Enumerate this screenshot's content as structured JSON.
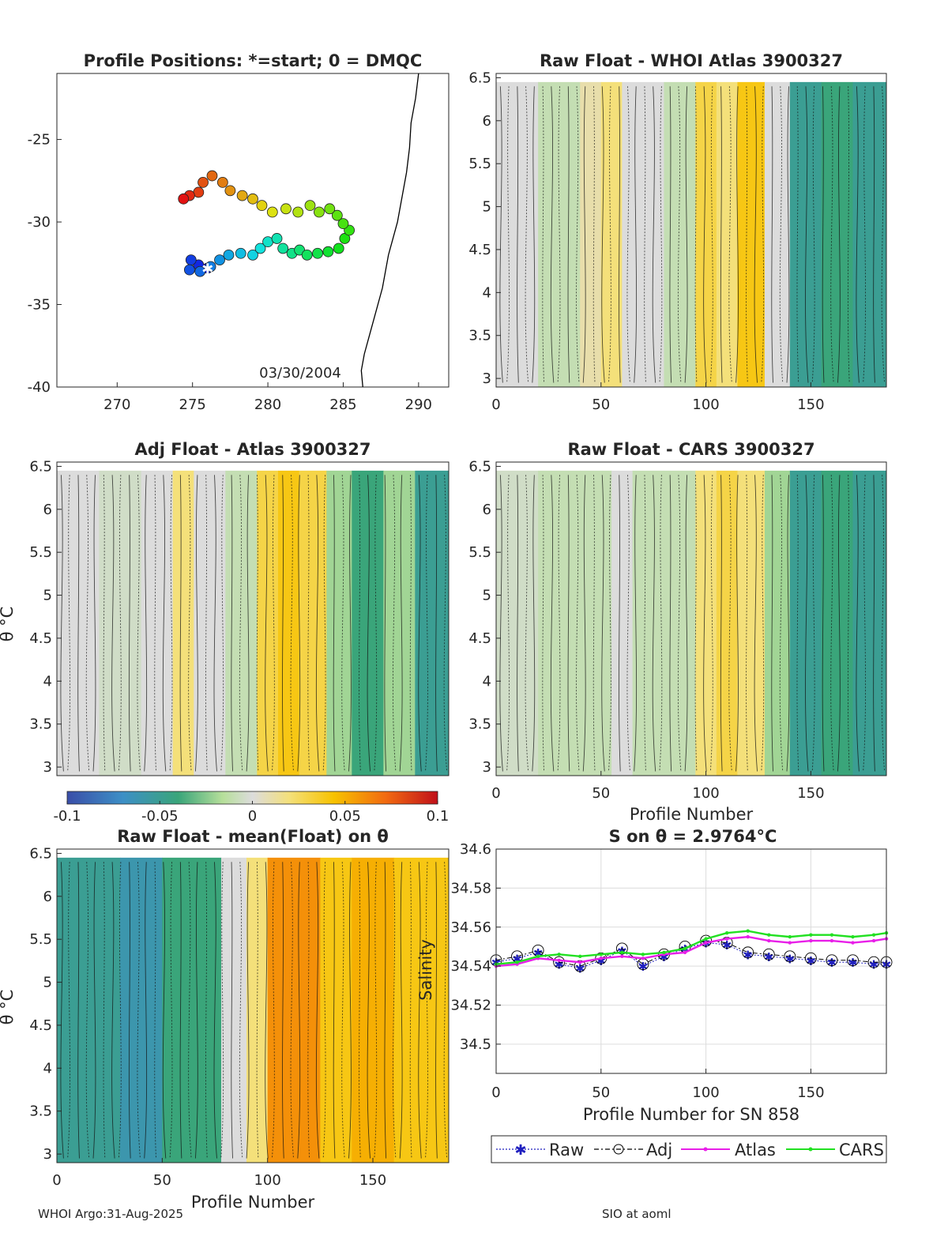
{
  "chart_data": [
    {
      "id": "map",
      "type": "scatter",
      "title": "Profile Positions: *=start; 0 = DMQC",
      "annotation": "03/30/2004",
      "xlim": [
        266,
        292
      ],
      "ylim": [
        -40,
        -21
      ],
      "xticks": [
        270,
        275,
        280,
        285,
        290
      ],
      "yticks": [
        -25,
        -30,
        -35,
        -40
      ],
      "coast": [
        [
          290.0,
          -21
        ],
        [
          289.8,
          -22.5
        ],
        [
          289.5,
          -24
        ],
        [
          289.4,
          -25.5
        ],
        [
          289.2,
          -27
        ],
        [
          288.9,
          -28.5
        ],
        [
          288.6,
          -30
        ],
        [
          288.3,
          -31
        ],
        [
          288.0,
          -32
        ],
        [
          287.8,
          -33
        ],
        [
          287.6,
          -34
        ],
        [
          287.3,
          -35
        ],
        [
          287.0,
          -36
        ],
        [
          286.7,
          -37
        ],
        [
          286.4,
          -38
        ],
        [
          286.2,
          -39
        ],
        [
          286.3,
          -40
        ]
      ],
      "track": [
        [
          276.0,
          -32.8
        ],
        [
          275.4,
          -32.6
        ],
        [
          274.9,
          -32.3
        ],
        [
          274.8,
          -32.9
        ],
        [
          275.5,
          -33.0
        ],
        [
          276.2,
          -32.7
        ],
        [
          276.8,
          -32.3
        ],
        [
          277.4,
          -32.0
        ],
        [
          278.2,
          -31.9
        ],
        [
          279.0,
          -32.0
        ],
        [
          279.5,
          -31.6
        ],
        [
          280.0,
          -31.2
        ],
        [
          280.6,
          -31.0
        ],
        [
          281.0,
          -31.6
        ],
        [
          281.6,
          -31.9
        ],
        [
          282.1,
          -31.7
        ],
        [
          282.6,
          -32.0
        ],
        [
          283.3,
          -31.9
        ],
        [
          284.0,
          -31.8
        ],
        [
          284.7,
          -31.6
        ],
        [
          285.1,
          -31.0
        ],
        [
          285.4,
          -30.5
        ],
        [
          285.0,
          -30.1
        ],
        [
          284.6,
          -29.6
        ],
        [
          284.1,
          -29.2
        ],
        [
          283.4,
          -29.4
        ],
        [
          282.8,
          -29.0
        ],
        [
          282.0,
          -29.4
        ],
        [
          281.2,
          -29.2
        ],
        [
          280.3,
          -29.4
        ],
        [
          279.6,
          -29.0
        ],
        [
          279.0,
          -28.6
        ],
        [
          278.3,
          -28.4
        ],
        [
          277.5,
          -28.1
        ],
        [
          277.0,
          -27.6
        ],
        [
          276.3,
          -27.2
        ],
        [
          275.7,
          -27.6
        ],
        [
          275.4,
          -28.2
        ],
        [
          274.8,
          -28.4
        ],
        [
          274.4,
          -28.6
        ]
      ],
      "start": [
        276.0,
        -32.8
      ]
    },
    {
      "id": "raw-atlas",
      "type": "heatmap",
      "title": "Raw Float - WHOI Atlas  3900327",
      "xlabel": "",
      "ylabel": "",
      "xlim": [
        0,
        186
      ],
      "ylim": [
        2.9,
        6.55
      ],
      "xticks": [
        0,
        50,
        100,
        150
      ],
      "yticks": [
        3,
        3.5,
        4,
        4.5,
        5,
        5.5,
        6,
        6.5
      ],
      "anomaly_bands": [
        [
          0,
          20,
          0.0
        ],
        [
          20,
          40,
          -0.01
        ],
        [
          40,
          50,
          0.01
        ],
        [
          50,
          60,
          0.02
        ],
        [
          60,
          80,
          0.0
        ],
        [
          80,
          95,
          -0.01
        ],
        [
          95,
          105,
          0.03
        ],
        [
          105,
          115,
          0.02
        ],
        [
          115,
          128,
          0.04
        ],
        [
          128,
          140,
          0.0
        ],
        [
          140,
          155,
          -0.05
        ],
        [
          155,
          170,
          -0.04
        ],
        [
          170,
          186,
          -0.05
        ]
      ]
    },
    {
      "id": "adj-atlas",
      "type": "heatmap",
      "title": "Adj Float - Atlas  3900327",
      "xlabel": "",
      "ylabel": "θ °C",
      "xlim": [
        0,
        186
      ],
      "ylim": [
        2.9,
        6.55
      ],
      "xticks": [],
      "yticks": [
        3,
        3.5,
        4,
        4.5,
        5,
        5.5,
        6,
        6.5
      ],
      "anomaly_bands": [
        [
          0,
          20,
          0.0
        ],
        [
          20,
          40,
          -0.005
        ],
        [
          40,
          55,
          0.0
        ],
        [
          55,
          65,
          0.02
        ],
        [
          65,
          80,
          0.0
        ],
        [
          80,
          95,
          -0.01
        ],
        [
          95,
          105,
          0.03
        ],
        [
          105,
          115,
          0.04
        ],
        [
          115,
          128,
          0.03
        ],
        [
          128,
          140,
          -0.02
        ],
        [
          140,
          155,
          -0.04
        ],
        [
          155,
          170,
          -0.02
        ],
        [
          170,
          186,
          -0.05
        ]
      ]
    },
    {
      "id": "raw-cars",
      "type": "heatmap",
      "title": "Raw Float - CARS  3900327",
      "xlabel": "Profile Number",
      "ylabel": "",
      "xlim": [
        0,
        186
      ],
      "ylim": [
        2.9,
        6.55
      ],
      "xticks": [
        0,
        50,
        100,
        150
      ],
      "yticks": [
        3,
        3.5,
        4,
        4.5,
        5,
        5.5,
        6,
        6.5
      ],
      "anomaly_bands": [
        [
          0,
          20,
          -0.005
        ],
        [
          20,
          40,
          -0.01
        ],
        [
          40,
          55,
          -0.01
        ],
        [
          55,
          65,
          0.0
        ],
        [
          65,
          80,
          -0.01
        ],
        [
          80,
          95,
          -0.01
        ],
        [
          95,
          105,
          0.02
        ],
        [
          105,
          115,
          0.03
        ],
        [
          115,
          128,
          0.02
        ],
        [
          128,
          140,
          -0.02
        ],
        [
          140,
          155,
          -0.05
        ],
        [
          155,
          170,
          -0.04
        ],
        [
          170,
          186,
          -0.05
        ]
      ]
    },
    {
      "id": "mean-anom",
      "type": "heatmap",
      "title": "Raw Float - mean(Float) on θ",
      "xlabel": "Profile Number",
      "ylabel": "θ °C",
      "xlim": [
        0,
        186
      ],
      "ylim": [
        2.9,
        6.55
      ],
      "xticks": [
        0,
        50,
        100,
        150
      ],
      "yticks": [
        3,
        3.5,
        4,
        4.5,
        5,
        5.5,
        6,
        6.5
      ],
      "anomaly_bands": [
        [
          0,
          30,
          -0.05
        ],
        [
          30,
          50,
          -0.06
        ],
        [
          50,
          78,
          -0.04
        ],
        [
          78,
          90,
          0.0
        ],
        [
          90,
          100,
          0.02
        ],
        [
          100,
          125,
          0.06
        ],
        [
          125,
          140,
          0.04
        ],
        [
          140,
          160,
          0.05
        ],
        [
          160,
          186,
          0.04
        ]
      ]
    },
    {
      "id": "salinity",
      "type": "line",
      "title": "S on θ = 2.9764°C",
      "xlabel": "Profile Number for SN 858",
      "ylabel": "Salinity",
      "xlim": [
        0,
        186
      ],
      "ylim": [
        34.485,
        34.6
      ],
      "xticks": [
        0,
        50,
        100,
        150
      ],
      "yticks": [
        34.5,
        34.52,
        34.54,
        34.56,
        34.58,
        34.6
      ],
      "ytick_labels": [
        "34.5",
        "34.52",
        "34.54",
        "34.56",
        "34.58",
        "34.6"
      ],
      "x": [
        0,
        10,
        20,
        30,
        40,
        50,
        60,
        70,
        80,
        90,
        100,
        110,
        120,
        130,
        140,
        150,
        160,
        170,
        180,
        186
      ],
      "series": [
        {
          "name": "Raw",
          "color": "#1f1fbf",
          "values": [
            34.542,
            34.544,
            34.547,
            34.541,
            34.539,
            34.543,
            34.548,
            34.54,
            34.545,
            34.549,
            34.552,
            34.551,
            34.546,
            34.545,
            34.544,
            34.543,
            34.542,
            34.542,
            34.541,
            34.541
          ]
        },
        {
          "name": "Adj",
          "color": "#000000",
          "values": [
            34.543,
            34.545,
            34.548,
            34.542,
            34.54,
            34.544,
            34.549,
            34.541,
            34.546,
            34.55,
            34.553,
            34.552,
            34.547,
            34.546,
            34.545,
            34.544,
            34.543,
            34.543,
            34.542,
            34.542
          ]
        },
        {
          "name": "Atlas",
          "color": "#e81fe8",
          "values": [
            34.54,
            34.541,
            34.544,
            34.543,
            34.542,
            34.544,
            34.545,
            34.544,
            34.546,
            34.547,
            34.552,
            34.554,
            34.555,
            34.553,
            34.552,
            34.553,
            34.553,
            34.552,
            34.553,
            34.554
          ]
        },
        {
          "name": "CARS",
          "color": "#22e022",
          "values": [
            34.541,
            34.542,
            34.545,
            34.546,
            34.545,
            34.546,
            34.547,
            34.546,
            34.547,
            34.549,
            34.554,
            34.557,
            34.558,
            34.556,
            34.555,
            34.556,
            34.556,
            34.555,
            34.556,
            34.557
          ]
        }
      ]
    }
  ],
  "colorbar": {
    "min": -0.1,
    "max": 0.1,
    "ticks": [
      -0.1,
      -0.05,
      0,
      0.05,
      0.1
    ],
    "tick_labels": [
      "-0.1",
      "-0.05",
      "0",
      "0.05",
      "0.1"
    ]
  },
  "legend": {
    "raw": "Raw",
    "adj": "Adj",
    "atlas": "Atlas",
    "cars": "CARS"
  },
  "footer": {
    "left": "WHOI Argo:31-Aug-2025",
    "right": "SIO at aoml"
  }
}
